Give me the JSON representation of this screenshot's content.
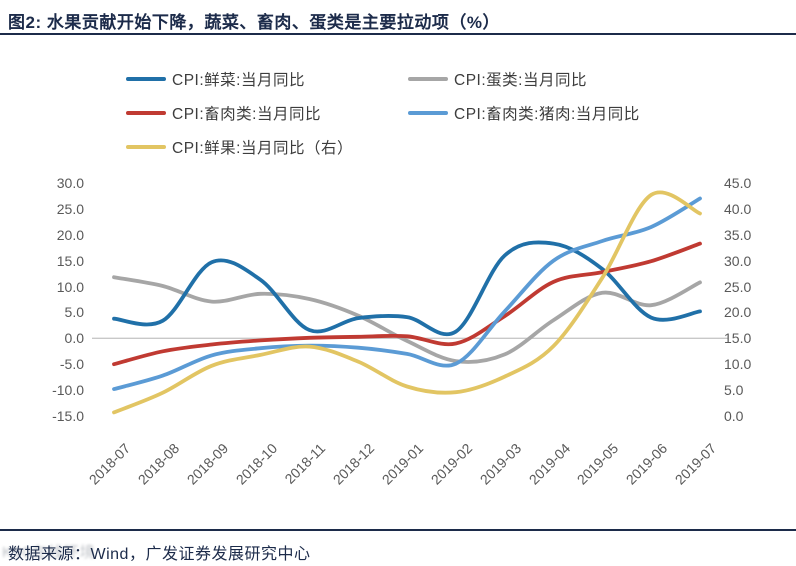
{
  "title": {
    "text": "图2:  水果贡献开始下降，蔬菜、畜肉、蛋类是主要拉动项（%）"
  },
  "footer": {
    "source_text": "数据来源：Wind，广发证券发展研究中心",
    "watermark_text": "K90在线环境"
  },
  "chart_data": {
    "type": "line",
    "title": "图2:  水果贡献开始下降，蔬菜、畜肉、蛋类是主要拉动项（%）",
    "categories": [
      "2018-07",
      "2018-08",
      "2018-09",
      "2018-10",
      "2018-11",
      "2018-12",
      "2019-01",
      "2019-02",
      "2019-03",
      "2019-04",
      "2019-05",
      "2019-06",
      "2019-07"
    ],
    "series": [
      {
        "name": "CPI:鲜菜:当月同比",
        "color": "#2070a8",
        "axis": "left",
        "values": [
          3.8,
          3.4,
          14.7,
          11.3,
          1.6,
          3.9,
          4.1,
          1.3,
          16.0,
          18.3,
          13.4,
          4.0,
          5.2
        ]
      },
      {
        "name": "CPI:蛋类:当月同比",
        "color": "#a6a6a6",
        "axis": "left",
        "values": [
          11.8,
          10.1,
          7.1,
          8.6,
          7.6,
          4.4,
          -0.5,
          -4.4,
          -3.1,
          3.5,
          8.8,
          6.4,
          10.8
        ]
      },
      {
        "name": "CPI:畜肉类:当月同比",
        "color": "#c03a32",
        "axis": "left",
        "values": [
          -5.0,
          -2.5,
          -1.2,
          -0.4,
          0.1,
          0.3,
          0.4,
          -1.0,
          4.3,
          10.9,
          12.8,
          14.9,
          18.3
        ]
      },
      {
        "name": "CPI:畜肉类:猪肉:当月同比",
        "color": "#5b9bd5",
        "axis": "left",
        "values": [
          -9.8,
          -7.2,
          -3.3,
          -1.9,
          -1.4,
          -1.8,
          -3.0,
          -4.9,
          5.2,
          15.0,
          18.8,
          21.5,
          27.0
        ]
      },
      {
        "name": "CPI:鲜果:当月同比（右）",
        "color": "#e2c563",
        "axis": "right",
        "values": [
          0.7,
          4.5,
          9.7,
          11.8,
          13.4,
          10.5,
          5.7,
          4.6,
          7.6,
          13.5,
          26.7,
          42.7,
          39.1
        ]
      }
    ],
    "left_axis": {
      "min": -15,
      "max": 30,
      "step": 5,
      "tick_labels": [
        "30.0",
        "25.0",
        "20.0",
        "15.0",
        "10.0",
        "5.0",
        "0.0",
        "-5.0",
        "-10.0",
        "-15.0"
      ]
    },
    "right_axis": {
      "min": 0,
      "max": 45,
      "step": 5,
      "tick_labels": [
        "45.0",
        "40.0",
        "35.0",
        "30.0",
        "25.0",
        "20.0",
        "15.0",
        "10.0",
        "5.0",
        "0.0"
      ]
    },
    "grid": "horizontal-zero-line-only",
    "legend_position": "top-left, two columns, three rows"
  }
}
